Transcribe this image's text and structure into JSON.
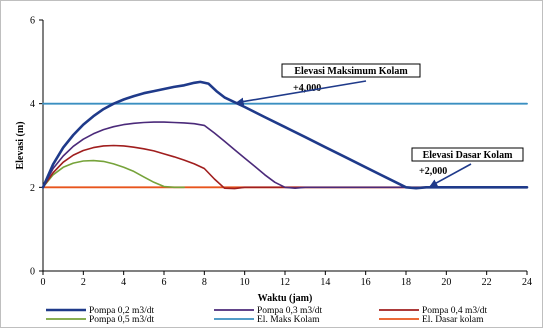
{
  "chart_data": {
    "type": "line",
    "title": "",
    "xlabel": "Waktu (jam)",
    "ylabel": "Elevasi (m)",
    "xlim": [
      0,
      24
    ],
    "ylim": [
      0,
      6
    ],
    "x_ticks": [
      0,
      2,
      4,
      6,
      8,
      10,
      12,
      14,
      16,
      18,
      20,
      22,
      24
    ],
    "y_ticks": [
      0,
      2,
      4,
      6
    ],
    "grid": false,
    "legend_position": "bottom",
    "series": [
      {
        "name": "Pompa 0,2 m3/dt",
        "color": "#1f3a8a",
        "x": [
          0,
          0.5,
          1,
          1.5,
          2,
          2.5,
          3,
          3.5,
          4,
          4.5,
          5,
          5.5,
          6,
          6.5,
          7,
          7.5,
          7.8,
          8.2,
          8.6,
          9,
          10,
          11,
          12,
          13,
          14,
          15,
          16,
          17,
          18,
          18.5,
          19,
          20,
          24
        ],
        "y": [
          2,
          2.55,
          2.95,
          3.25,
          3.5,
          3.7,
          3.87,
          4.0,
          4.1,
          4.18,
          4.25,
          4.3,
          4.35,
          4.4,
          4.44,
          4.5,
          4.52,
          4.48,
          4.3,
          4.15,
          3.92,
          3.68,
          3.44,
          3.2,
          2.96,
          2.72,
          2.48,
          2.24,
          2.0,
          1.98,
          2.0,
          2.0,
          2.0
        ]
      },
      {
        "name": "Pompa 0,3 m3/dt",
        "color": "#4b2a7a",
        "x": [
          0,
          0.5,
          1,
          1.5,
          2,
          2.5,
          3,
          3.5,
          4,
          4.5,
          5,
          5.5,
          6,
          6.5,
          7,
          7.5,
          8,
          8.5,
          9,
          9.5,
          10,
          10.5,
          11,
          11.5,
          12,
          12.5,
          13,
          24
        ],
        "y": [
          2,
          2.45,
          2.75,
          2.98,
          3.15,
          3.28,
          3.38,
          3.45,
          3.5,
          3.53,
          3.55,
          3.56,
          3.56,
          3.55,
          3.54,
          3.52,
          3.48,
          3.3,
          3.1,
          2.9,
          2.7,
          2.5,
          2.3,
          2.12,
          2.0,
          1.98,
          2.0,
          2.0
        ]
      },
      {
        "name": "Pompa 0,4 m3/dt",
        "color": "#a01e1e",
        "x": [
          0,
          0.5,
          1,
          1.5,
          2,
          2.5,
          3,
          3.5,
          4,
          4.5,
          5,
          5.5,
          6,
          6.5,
          7,
          7.5,
          8,
          8.5,
          9,
          9.5,
          10,
          24
        ],
        "y": [
          2,
          2.35,
          2.6,
          2.77,
          2.88,
          2.95,
          2.99,
          3.0,
          2.99,
          2.96,
          2.92,
          2.87,
          2.8,
          2.73,
          2.65,
          2.56,
          2.45,
          2.2,
          1.98,
          1.97,
          2.0,
          2.0
        ]
      },
      {
        "name": "Pompa 0,5 m3/dt",
        "color": "#76a33a",
        "x": [
          0,
          0.5,
          1,
          1.5,
          2,
          2.5,
          3,
          3.5,
          4,
          4.5,
          5,
          5.5,
          6,
          6.5,
          7
        ],
        "y": [
          2,
          2.3,
          2.48,
          2.58,
          2.63,
          2.64,
          2.62,
          2.56,
          2.48,
          2.38,
          2.25,
          2.12,
          2.02,
          2.0,
          2.0
        ]
      },
      {
        "name": "El. Maks Kolam",
        "color": "#3a8fc1",
        "x": [
          0,
          24
        ],
        "y": [
          4,
          4
        ]
      },
      {
        "name": "El. Dasar kolam",
        "color": "#e8551c",
        "x": [
          0,
          24
        ],
        "y": [
          2,
          2
        ]
      }
    ],
    "annotations": [
      {
        "title": "Elevasi Maksimum Kolam",
        "value": "+4,000",
        "target_x": 9.6,
        "target_y": 4.0
      },
      {
        "title": "Elevasi Dasar Kolam",
        "value": "+2,000",
        "target_x": 19.2,
        "target_y": 2.0
      }
    ]
  }
}
